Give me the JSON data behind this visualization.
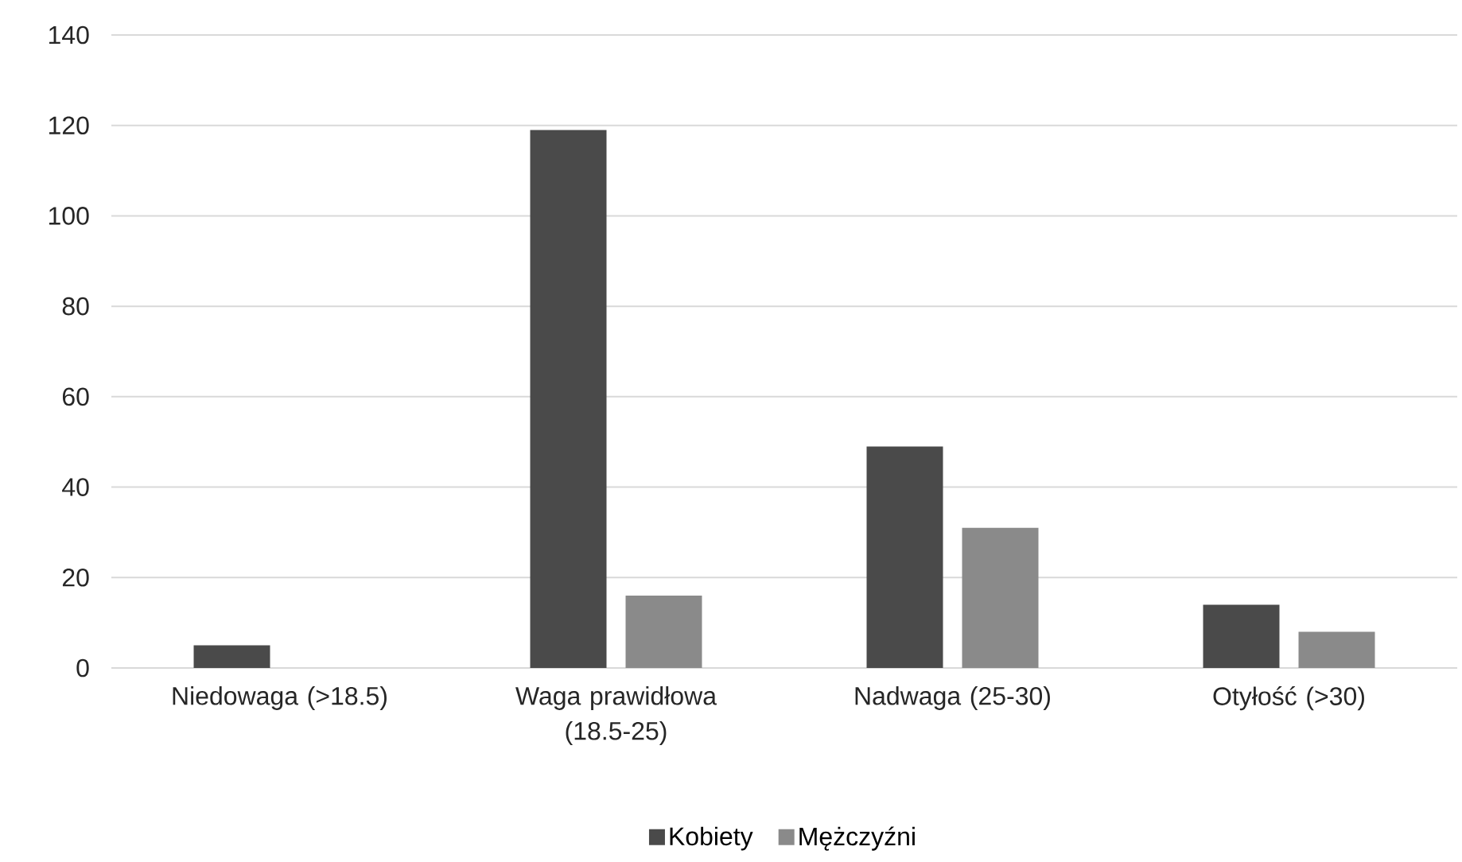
{
  "chart_data": {
    "type": "bar",
    "categories": [
      "Niedowaga (>18.5)",
      "Waga prawidłowa (18.5-25)",
      "Nadwaga (25-30)",
      "Otyłość (>30)"
    ],
    "series": [
      {
        "name": "Kobiety",
        "color": "#4a4a4a",
        "values": [
          5,
          119,
          49,
          14
        ]
      },
      {
        "name": "Mężczyźni",
        "color": "#8a8a8a",
        "values": [
          0,
          16,
          31,
          8
        ]
      }
    ],
    "ylim": [
      0,
      140
    ],
    "yticks": [
      0,
      20,
      40,
      60,
      80,
      100,
      120,
      140
    ],
    "grid": "y",
    "legend": "bottom"
  }
}
